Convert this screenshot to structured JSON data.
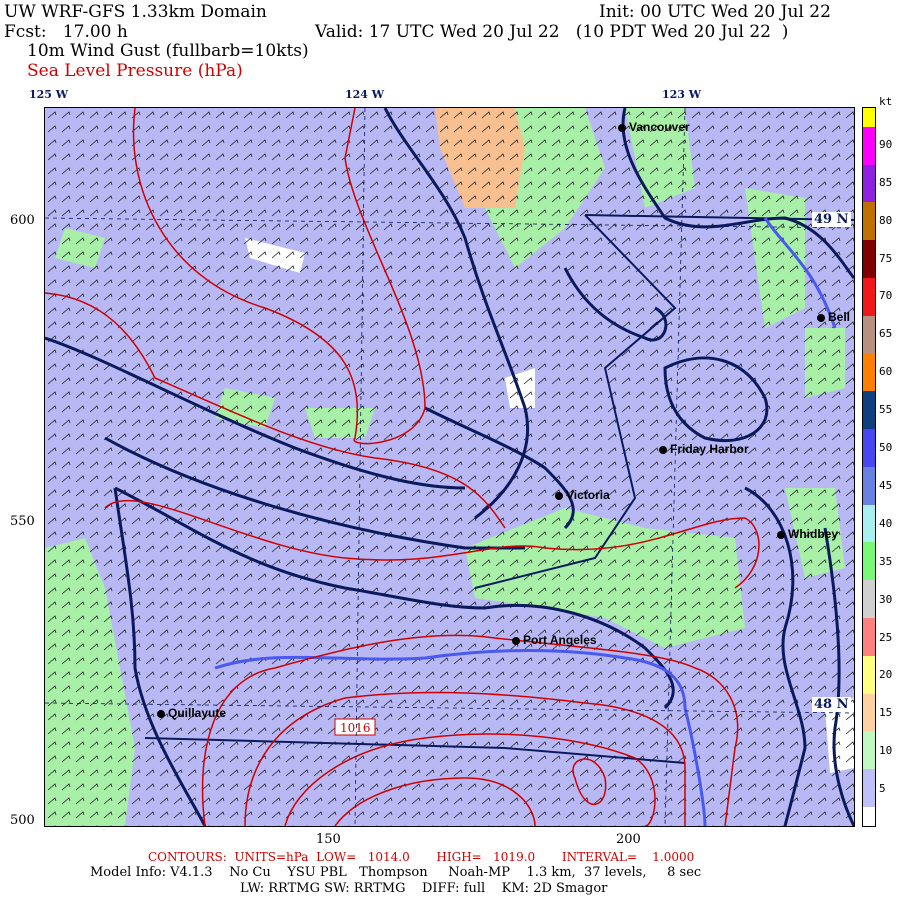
{
  "header": {
    "title": "UW WRF-GFS 1.33km Domain",
    "init": "Init: 00 UTC Wed 20 Jul 22",
    "fcst": "Fcst:   17.00 h",
    "valid": "Valid: 17 UTC Wed 20 Jul 22   (10 PDT Wed 20 Jul 22  )",
    "field1": "10m Wind Gust (fullbarb=10kts)",
    "field2": "Sea Level Pressure (hPa)"
  },
  "axes": {
    "top_lon": [
      "125 W",
      "124 W",
      "123 W"
    ],
    "left": [
      "600",
      "550",
      "500"
    ],
    "bottom": [
      "150",
      "200"
    ],
    "right_lat": [
      "49 N",
      "48 N"
    ]
  },
  "map": {
    "cities": [
      "Vancouver",
      "Bell",
      "Friday Harbor",
      "Victoria",
      "Whidbey",
      "Port Angeles",
      "Quillayute"
    ],
    "contour_label": "1016",
    "colors": {
      "water_land_low": "#b8b8f4",
      "green": "#a8f0a8",
      "orange": "#f8c090",
      "slp": "#d00000",
      "coast": "#0a1a5c"
    }
  },
  "colorbar": {
    "unit": "kt",
    "labels": [
      "90",
      "85",
      "80",
      "75",
      "70",
      "65",
      "60",
      "55",
      "50",
      "45",
      "40",
      "35",
      "30",
      "25",
      "20",
      "15",
      "10",
      "5"
    ],
    "colors_top_to_bottom": [
      "#ffff00",
      "#ff00ff",
      "#ff00ff",
      "#9020e0",
      "#9020e0",
      "#c07000",
      "#c07000",
      "#800000",
      "#800000",
      "#f01818",
      "#f01818",
      "#b89080",
      "#b89080",
      "#ff8000",
      "#ff8000",
      "#104080",
      "#104080",
      "#4848f0",
      "#4848f0",
      "#6880e0",
      "#6880e0",
      "#a8f0f0",
      "#a8f0f0",
      "#78f878",
      "#78f878",
      "#d0d0d0",
      "#d0d0d0",
      "#ff8080",
      "#ff8080",
      "#ffff80",
      "#ffff80",
      "#ffd0a0",
      "#ffd0a0",
      "#c0f8c0",
      "#c0f8c0",
      "#c0c0f8",
      "#c0c0f8",
      "#ffffff"
    ]
  },
  "footer": {
    "contours": "CONTOURS:  UNITS=hPa  LOW=   1014.0       HIGH=   1019.0       INTERVAL=    1.0000",
    "model": "Model Info: V4.1.3    No Cu    YSU PBL   Thompson     Noah-MP    1.3 km,  37 levels,     8 sec",
    "physics": "LW: RRTMG SW: RRTMG    DIFF: full    KM: 2D Smagor"
  }
}
